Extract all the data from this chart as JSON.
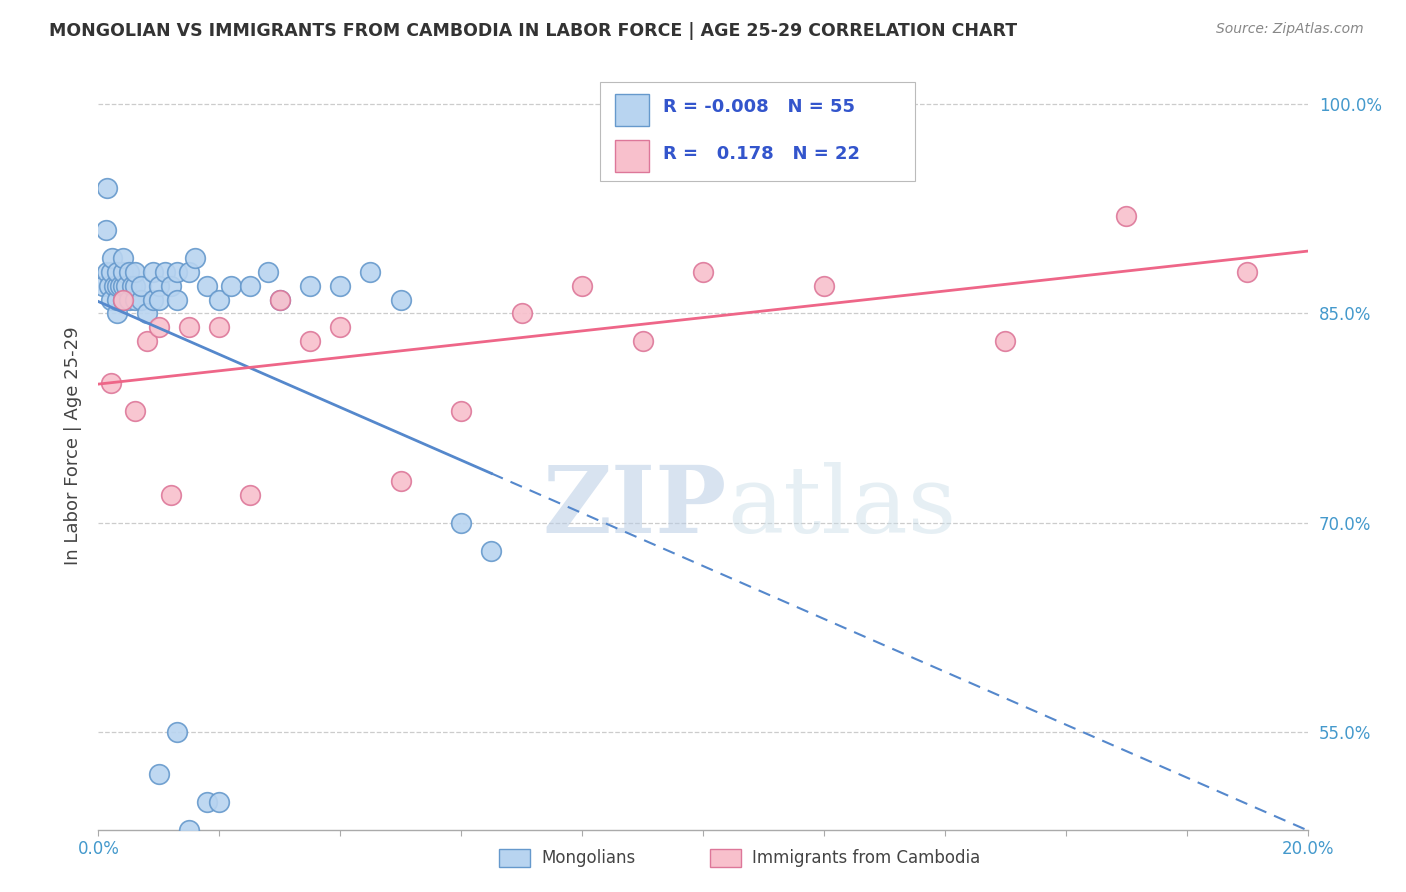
{
  "title": "MONGOLIAN VS IMMIGRANTS FROM CAMBODIA IN LABOR FORCE | AGE 25-29 CORRELATION CHART",
  "source": "Source: ZipAtlas.com",
  "ylabel": "In Labor Force | Age 25-29",
  "xmin": 0.0,
  "xmax": 0.2,
  "ymin": 0.48,
  "ymax": 1.03,
  "yticks": [
    0.55,
    0.7,
    0.85,
    1.0
  ],
  "ytick_labels": [
    "55.0%",
    "70.0%",
    "85.0%",
    "100.0%"
  ],
  "mongolian_R": "-0.008",
  "mongolian_N": "55",
  "cambodia_R": "0.178",
  "cambodia_N": "22",
  "blue_fill": "#b8d4f0",
  "blue_edge": "#6699cc",
  "pink_fill": "#f8c0cc",
  "pink_edge": "#dd7799",
  "blue_line": "#5588cc",
  "pink_line": "#ee6688",
  "legend_color": "#3355cc",
  "background": "#ffffff",
  "watermark": "ZIPatlas",
  "watermark_color": "#cce0f0",
  "mon_x": [
    0.0008,
    0.0012,
    0.0015,
    0.0015,
    0.0018,
    0.002,
    0.002,
    0.0022,
    0.0025,
    0.003,
    0.003,
    0.003,
    0.003,
    0.0035,
    0.004,
    0.004,
    0.004,
    0.004,
    0.0045,
    0.005,
    0.005,
    0.0055,
    0.006,
    0.006,
    0.006,
    0.007,
    0.007,
    0.008,
    0.009,
    0.009,
    0.01,
    0.01,
    0.011,
    0.012,
    0.013,
    0.013,
    0.015,
    0.016,
    0.018,
    0.02,
    0.022,
    0.025,
    0.028,
    0.03,
    0.035,
    0.04,
    0.045,
    0.05,
    0.06,
    0.065,
    0.01,
    0.013,
    0.015,
    0.018,
    0.02
  ],
  "mon_y": [
    0.87,
    0.91,
    0.88,
    0.94,
    0.87,
    0.86,
    0.88,
    0.89,
    0.87,
    0.85,
    0.86,
    0.87,
    0.88,
    0.87,
    0.86,
    0.87,
    0.88,
    0.89,
    0.87,
    0.86,
    0.88,
    0.87,
    0.86,
    0.87,
    0.88,
    0.86,
    0.87,
    0.85,
    0.86,
    0.88,
    0.87,
    0.86,
    0.88,
    0.87,
    0.86,
    0.88,
    0.88,
    0.89,
    0.87,
    0.86,
    0.87,
    0.87,
    0.88,
    0.86,
    0.87,
    0.87,
    0.88,
    0.86,
    0.7,
    0.68,
    0.52,
    0.55,
    0.48,
    0.5,
    0.5
  ],
  "cam_x": [
    0.002,
    0.004,
    0.006,
    0.008,
    0.01,
    0.012,
    0.015,
    0.02,
    0.025,
    0.03,
    0.035,
    0.04,
    0.05,
    0.06,
    0.07,
    0.08,
    0.09,
    0.1,
    0.12,
    0.15,
    0.17,
    0.19
  ],
  "cam_y": [
    0.8,
    0.86,
    0.78,
    0.83,
    0.84,
    0.72,
    0.84,
    0.84,
    0.72,
    0.86,
    0.83,
    0.84,
    0.73,
    0.78,
    0.85,
    0.87,
    0.83,
    0.88,
    0.87,
    0.83,
    0.92,
    0.88
  ]
}
